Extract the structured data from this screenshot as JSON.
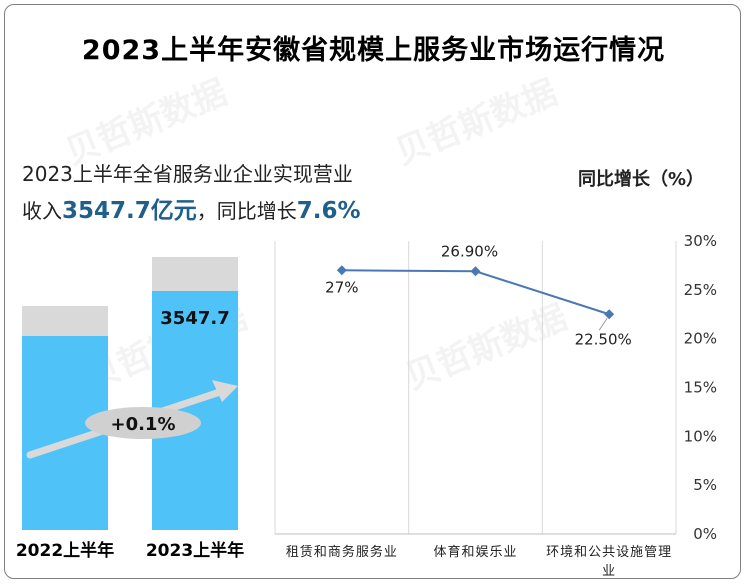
{
  "title": "2023上半年安徽省规模上服务业市场运行情况",
  "summary": {
    "line1": "2023上半年全省服务业企业实现营业",
    "line2_prefix": "收入",
    "line2_value": "3547.7亿元",
    "line2_mid": "，同比增长",
    "line2_growth": "7.6%"
  },
  "watermark": "贝哲斯数据",
  "colors": {
    "bar": "#4fc3f7",
    "bar_bg": "#d9d9d9",
    "line": "#4a78b5",
    "highlight": "#1f5f8b"
  },
  "chart_data": [
    {
      "type": "bar",
      "categories": [
        "2022上半年",
        "2023上半年"
      ],
      "data_labels": [
        "",
        "3547.7"
      ],
      "annotation": "+0.1%"
    },
    {
      "type": "line",
      "categories": [
        "租赁和商务服务业",
        "体育和娱乐业",
        "环境和公共设施管理业"
      ],
      "series": [
        {
          "values": [
            27.0,
            26.9,
            22.5
          ]
        }
      ],
      "data_labels": [
        "27%",
        "26.90%",
        "22.50%"
      ],
      "ylabel": "同比增长（%）",
      "ylim": [
        0,
        30
      ],
      "yticks": [
        "0%",
        "5%",
        "10%",
        "15%",
        "20%",
        "25%",
        "30%"
      ],
      "grid": "vertical"
    }
  ]
}
